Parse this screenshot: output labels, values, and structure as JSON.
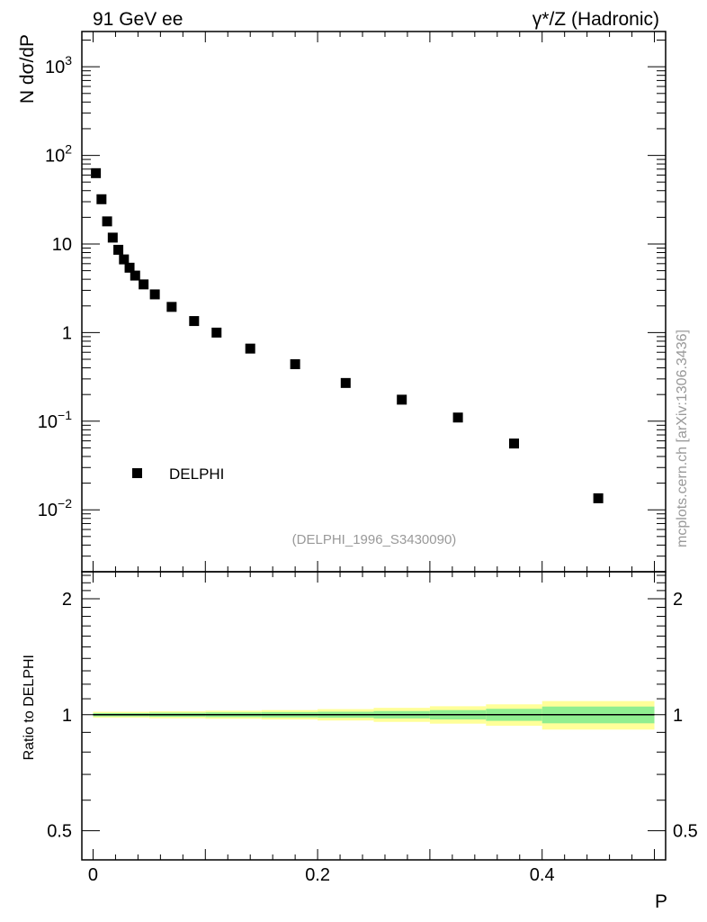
{
  "header": {
    "left_label": "91 GeV ee",
    "right_label": "γ*/Z (Hadronic)"
  },
  "side_label": "mcplots.cern.ch [arXiv:1306.3436]",
  "analysis_label": "(DELPHI_1996_S3430090)",
  "colors": {
    "data_marker": "#000000",
    "band_inner": "#90ee90",
    "band_outer": "#ffff99",
    "ref_line": "#000000"
  },
  "chart_data": [
    {
      "type": "scatter",
      "ylabel": "N dσ/dP",
      "yscale": "log",
      "xlim": [
        -0.01,
        0.51
      ],
      "ylim": [
        0.002,
        2500
      ],
      "y_ticks": [
        {
          "value": 1000,
          "base": "10",
          "exp": "3"
        },
        {
          "value": 100,
          "base": "10",
          "exp": "2"
        },
        {
          "value": 10,
          "base": "10",
          "exp": ""
        },
        {
          "value": 1,
          "base": "1",
          "exp": ""
        },
        {
          "value": 0.1,
          "base": "10",
          "exp": "−1"
        },
        {
          "value": 0.01,
          "base": "10",
          "exp": "−2"
        }
      ],
      "legend": {
        "label": "DELPHI",
        "position": "lower-left"
      },
      "series": [
        {
          "name": "DELPHI",
          "x": [
            0.0025,
            0.0075,
            0.0125,
            0.0175,
            0.0225,
            0.0275,
            0.0325,
            0.0375,
            0.045,
            0.055,
            0.07,
            0.09,
            0.11,
            0.14,
            0.18,
            0.225,
            0.275,
            0.325,
            0.375,
            0.45
          ],
          "y": [
            63,
            32,
            18,
            11.8,
            8.6,
            6.7,
            5.4,
            4.4,
            3.5,
            2.7,
            1.95,
            1.35,
            1.0,
            0.66,
            0.44,
            0.27,
            0.175,
            0.11,
            0.056,
            0.0135
          ]
        }
      ]
    },
    {
      "type": "area",
      "xlabel": "P",
      "ylabel": "Ratio to DELPHI",
      "yscale": "log",
      "xlim": [
        -0.01,
        0.51
      ],
      "ylim": [
        0.42,
        2.35
      ],
      "x_ticks": [
        {
          "value": 0,
          "label": "0"
        },
        {
          "value": 0.2,
          "label": "0.2"
        },
        {
          "value": 0.4,
          "label": "0.4"
        }
      ],
      "y_ticks": [
        {
          "value": 2,
          "label": "2"
        },
        {
          "value": 1,
          "label": "1"
        },
        {
          "value": 0.5,
          "label": "0.5"
        }
      ],
      "reference_line": 1,
      "bands": {
        "edges": [
          0,
          0.05,
          0.1,
          0.15,
          0.2,
          0.25,
          0.3,
          0.35,
          0.4,
          0.5
        ],
        "inner": [
          0.01,
          0.012,
          0.014,
          0.016,
          0.018,
          0.022,
          0.028,
          0.036,
          0.05
        ],
        "outer": [
          0.018,
          0.021,
          0.024,
          0.028,
          0.034,
          0.042,
          0.052,
          0.064,
          0.085
        ]
      }
    }
  ]
}
